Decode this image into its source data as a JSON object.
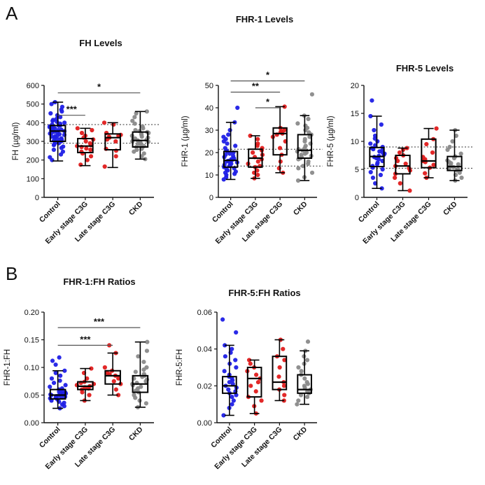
{
  "panel_labels": [
    "A",
    "B"
  ],
  "colors": {
    "Control": "#1f1fe6",
    "Early stage C3G": "#e01c1c",
    "Late stage C3G": "#e01c1c",
    "CKD": "#8a8a8a"
  },
  "chart_data": [
    {
      "type": "box",
      "title": "FH Levels",
      "ylabel": "FH (µg/ml)",
      "categories": [
        "Control",
        "Early stage C3G",
        "Late stage C3G",
        "CKD"
      ],
      "ylim": [
        0,
        600
      ],
      "yticks": [
        0,
        100,
        200,
        300,
        400,
        500,
        600
      ],
      "reference_lines": [
        290,
        390
      ],
      "boxes": [
        {
          "min": 195,
          "q1": 300,
          "median": 355,
          "q3": 385,
          "max": 510
        },
        {
          "min": 170,
          "q1": 240,
          "median": 275,
          "q3": 315,
          "max": 370
        },
        {
          "min": 160,
          "q1": 255,
          "median": 320,
          "q3": 340,
          "max": 400
        },
        {
          "min": 205,
          "q1": 270,
          "median": 305,
          "q3": 350,
          "max": 460
        }
      ],
      "points": [
        [
          200,
          215,
          230,
          245,
          255,
          265,
          272,
          280,
          285,
          290,
          295,
          300,
          305,
          308,
          312,
          316,
          320,
          325,
          328,
          332,
          335,
          338,
          342,
          345,
          348,
          352,
          355,
          358,
          360,
          363,
          366,
          370,
          373,
          376,
          380,
          383,
          386,
          390,
          395,
          400,
          405,
          410,
          415,
          420,
          430,
          440,
          450,
          460,
          470,
          485,
          500,
          510
        ],
        [
          175,
          200,
          220,
          235,
          245,
          255,
          262,
          270,
          275,
          280,
          290,
          300,
          310,
          320,
          330,
          345,
          360,
          370
        ],
        [
          165,
          220,
          250,
          260,
          300,
          310,
          320,
          325,
          330,
          335,
          345,
          390,
          400
        ],
        [
          205,
          220,
          235,
          245,
          255,
          260,
          265,
          270,
          275,
          280,
          285,
          290,
          295,
          298,
          300,
          305,
          308,
          312,
          315,
          320,
          325,
          330,
          335,
          340,
          345,
          350,
          355,
          360,
          370,
          380,
          395,
          410,
          430,
          450,
          460
        ]
      ],
      "significance": [
        {
          "from": 0,
          "to": 1,
          "label": "***",
          "y": 440
        },
        {
          "from": 0,
          "to": 3,
          "label": "*",
          "y": 560
        }
      ]
    },
    {
      "type": "box",
      "title": "FHR-1 Levels",
      "ylabel": "FHR-1 (µg/ml)",
      "categories": [
        "Control",
        "Early stage C3G",
        "Late stage C3G",
        "CKD"
      ],
      "ylim": [
        0,
        50
      ],
      "yticks": [
        0,
        10,
        20,
        30,
        40,
        50
      ],
      "reference_lines": [
        14,
        21.5
      ],
      "boxes": [
        {
          "min": 8,
          "q1": 13.5,
          "median": 16.5,
          "q3": 20.5,
          "max": 33.5
        },
        {
          "min": 8.5,
          "q1": 13.5,
          "median": 17.5,
          "q3": 21.5,
          "max": 27.5
        },
        {
          "min": 11,
          "q1": 19,
          "median": 28.5,
          "q3": 31,
          "max": 40.5
        },
        {
          "min": 7.5,
          "q1": 17.5,
          "median": 21,
          "q3": 28,
          "max": 36.5
        }
      ],
      "points": [
        [
          8,
          9,
          10,
          10.5,
          11,
          11.5,
          12,
          12.5,
          13,
          13.5,
          14,
          14.5,
          15,
          15.2,
          15.6,
          16,
          16.3,
          16.6,
          17,
          17.3,
          17.6,
          18,
          18.5,
          19,
          19.5,
          20,
          20.5,
          21,
          22,
          23,
          24,
          25,
          26,
          27,
          28,
          30,
          33.5,
          40
        ],
        [
          8.5,
          10,
          11,
          12,
          13.5,
          14,
          15,
          16,
          17,
          18,
          19,
          20,
          21,
          22,
          23,
          24,
          26,
          27.5
        ],
        [
          11,
          13,
          16,
          19,
          22,
          25,
          27,
          28,
          28.5,
          29,
          29.5,
          30,
          31,
          40.5
        ],
        [
          7.5,
          9,
          11,
          13,
          14,
          15,
          16,
          17,
          17.5,
          18,
          18.5,
          19,
          19.5,
          20,
          20.5,
          21,
          21.5,
          22,
          23,
          24,
          25,
          26,
          27,
          28,
          29,
          30,
          31,
          32,
          33,
          35,
          36.5,
          46
        ]
      ],
      "significance": [
        {
          "from": 0,
          "to": 3,
          "label": "*",
          "y": 52
        },
        {
          "from": 0,
          "to": 2,
          "label": "**",
          "y": 47
        },
        {
          "from": 1,
          "to": 2,
          "label": "*",
          "y": 40
        }
      ]
    },
    {
      "type": "box",
      "title": "FHR-5 Levels",
      "ylabel": "FHR-5 (µg/ml)",
      "categories": [
        "Control",
        "Early stage C3G",
        "Late stage C3G",
        "CKD"
      ],
      "ylim": [
        0,
        20
      ],
      "yticks": [
        0,
        5,
        10,
        15,
        20
      ],
      "reference_lines": [
        5.2,
        9
      ],
      "boxes": [
        {
          "min": 1.6,
          "q1": 5.5,
          "median": 7.3,
          "q3": 8.9,
          "max": 14.5
        },
        {
          "min": 1.2,
          "q1": 4.2,
          "median": 5.6,
          "q3": 7.5,
          "max": 8.8
        },
        {
          "min": 3.5,
          "q1": 5.3,
          "median": 6.5,
          "q3": 10.4,
          "max": 12.3
        },
        {
          "min": 3,
          "q1": 4.8,
          "median": 5.5,
          "q3": 7.3,
          "max": 12
        }
      ],
      "points": [
        [
          1.6,
          2.5,
          3.5,
          4,
          4.5,
          5,
          5.3,
          5.6,
          5.9,
          6.2,
          6.5,
          6.8,
          7,
          7.2,
          7.4,
          7.6,
          7.8,
          8,
          8.2,
          8.4,
          8.6,
          8.8,
          9,
          9.3,
          9.6,
          10,
          10.5,
          11,
          12,
          13,
          14.5,
          17.3
        ],
        [
          1.2,
          2.5,
          3.5,
          4.2,
          4.8,
          5.2,
          5.6,
          6,
          6.5,
          7,
          7.5,
          8,
          8.5,
          8.8
        ],
        [
          3.5,
          4.3,
          5.3,
          5.8,
          6.3,
          6.5,
          6.8,
          7.2,
          8,
          9.5,
          10.4,
          12.3
        ],
        [
          3,
          3.5,
          4,
          4.4,
          4.8,
          5,
          5.2,
          5.4,
          5.5,
          5.7,
          5.9,
          6.1,
          6.3,
          6.6,
          7,
          7.3,
          7.8,
          8.5,
          9,
          10,
          11,
          12
        ]
      ],
      "significance": []
    },
    {
      "type": "box",
      "title": "FHR-1:FH Ratios",
      "ylabel": "FHR-1:FH",
      "categories": [
        "Control",
        "Early stage C3G",
        "Late stage C3G",
        "CKD"
      ],
      "ylim": [
        0,
        0.2
      ],
      "yticks": [
        0.0,
        0.05,
        0.1,
        0.15,
        0.2
      ],
      "ytick_labels": [
        "0.00",
        "0.05",
        "0.10",
        "0.15",
        "0.20"
      ],
      "reference_lines": [],
      "boxes": [
        {
          "min": 0.026,
          "q1": 0.043,
          "median": 0.05,
          "q3": 0.06,
          "max": 0.094
        },
        {
          "min": 0.04,
          "q1": 0.06,
          "median": 0.066,
          "q3": 0.074,
          "max": 0.098
        },
        {
          "min": 0.05,
          "q1": 0.07,
          "median": 0.085,
          "q3": 0.094,
          "max": 0.126
        },
        {
          "min": 0.028,
          "q1": 0.055,
          "median": 0.07,
          "q3": 0.085,
          "max": 0.146
        }
      ],
      "points": [
        [
          0.026,
          0.03,
          0.033,
          0.036,
          0.038,
          0.04,
          0.042,
          0.044,
          0.045,
          0.046,
          0.047,
          0.048,
          0.049,
          0.05,
          0.051,
          0.052,
          0.053,
          0.054,
          0.055,
          0.056,
          0.058,
          0.06,
          0.062,
          0.065,
          0.068,
          0.072,
          0.076,
          0.08,
          0.085,
          0.09,
          0.094,
          0.105,
          0.112,
          0.118
        ],
        [
          0.04,
          0.05,
          0.055,
          0.06,
          0.062,
          0.064,
          0.066,
          0.068,
          0.07,
          0.072,
          0.074,
          0.08,
          0.09,
          0.098
        ],
        [
          0.05,
          0.06,
          0.07,
          0.075,
          0.08,
          0.085,
          0.088,
          0.09,
          0.094,
          0.1,
          0.126,
          0.14
        ],
        [
          0.028,
          0.035,
          0.04,
          0.045,
          0.05,
          0.055,
          0.058,
          0.062,
          0.065,
          0.068,
          0.07,
          0.072,
          0.075,
          0.078,
          0.08,
          0.083,
          0.085,
          0.088,
          0.092,
          0.096,
          0.1,
          0.11,
          0.12,
          0.13,
          0.146
        ]
      ],
      "significance": [
        {
          "from": 0,
          "to": 3,
          "label": "***",
          "y": 0.172
        },
        {
          "from": 0,
          "to": 2,
          "label": "***",
          "y": 0.14
        }
      ]
    },
    {
      "type": "box",
      "title": "FHR-5:FH Ratios",
      "ylabel": "FHR-5:FH",
      "categories": [
        "Control",
        "Early stage C3G",
        "Late stage C3G",
        "CKD"
      ],
      "ylim": [
        0,
        0.06
      ],
      "yticks": [
        0.0,
        0.02,
        0.04,
        0.06
      ],
      "ytick_labels": [
        "0.00",
        "0.02",
        "0.04",
        "0.06"
      ],
      "reference_lines": [],
      "boxes": [
        {
          "min": 0.004,
          "q1": 0.016,
          "median": 0.02,
          "q3": 0.025,
          "max": 0.042
        },
        {
          "min": 0.005,
          "q1": 0.014,
          "median": 0.024,
          "q3": 0.03,
          "max": 0.034
        },
        {
          "min": 0.012,
          "q1": 0.018,
          "median": 0.022,
          "q3": 0.036,
          "max": 0.045
        },
        {
          "min": 0.01,
          "q1": 0.016,
          "median": 0.018,
          "q3": 0.026,
          "max": 0.039
        }
      ],
      "points": [
        [
          0.004,
          0.008,
          0.01,
          0.012,
          0.014,
          0.015,
          0.016,
          0.017,
          0.018,
          0.019,
          0.02,
          0.021,
          0.022,
          0.023,
          0.024,
          0.025,
          0.026,
          0.028,
          0.03,
          0.032,
          0.034,
          0.036,
          0.038,
          0.04,
          0.042,
          0.049,
          0.056
        ],
        [
          0.005,
          0.009,
          0.012,
          0.014,
          0.017,
          0.02,
          0.022,
          0.024,
          0.026,
          0.028,
          0.03,
          0.032,
          0.034
        ],
        [
          0.012,
          0.015,
          0.018,
          0.02,
          0.022,
          0.025,
          0.03,
          0.034,
          0.036,
          0.04,
          0.045
        ],
        [
          0.01,
          0.012,
          0.014,
          0.015,
          0.016,
          0.017,
          0.018,
          0.019,
          0.02,
          0.021,
          0.022,
          0.024,
          0.026,
          0.028,
          0.03,
          0.032,
          0.034,
          0.036,
          0.039,
          0.044
        ]
      ],
      "significance": []
    }
  ]
}
